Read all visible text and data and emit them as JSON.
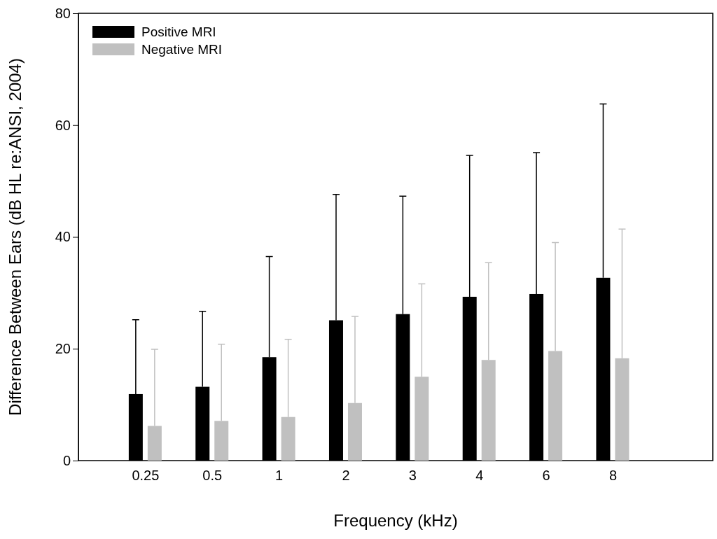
{
  "chart_data": {
    "type": "bar",
    "xlabel": "Frequency (kHz)",
    "ylabel": "Difference Between Ears (dB HL re:ANSI, 2004)",
    "categories": [
      "0.25",
      "0.5",
      "1",
      "2",
      "3",
      "4",
      "6",
      "8"
    ],
    "series": [
      {
        "name": "Positive MRI",
        "color": "#000000",
        "values": [
          11.9,
          13.2,
          18.5,
          25.1,
          26.2,
          29.3,
          29.8,
          32.7
        ],
        "errors": [
          [
            11.9,
            25.2
          ],
          [
            13.2,
            26.7
          ],
          [
            18.5,
            36.5
          ],
          [
            25.1,
            47.6
          ],
          [
            26.2,
            47.3
          ],
          [
            29.3,
            54.6
          ],
          [
            29.8,
            55.1
          ],
          [
            32.7,
            63.8
          ]
        ]
      },
      {
        "name": "Negative MRI",
        "color": "#c0c0c0",
        "values": [
          6.2,
          7.1,
          7.8,
          10.3,
          15.0,
          18.0,
          19.6,
          18.3
        ],
        "errors": [
          [
            6.2,
            19.9
          ],
          [
            7.1,
            20.8
          ],
          [
            7.8,
            21.7
          ],
          [
            10.3,
            25.8
          ],
          [
            15.0,
            31.6
          ],
          [
            18.0,
            35.4
          ],
          [
            19.6,
            39.0
          ],
          [
            18.3,
            41.4
          ]
        ]
      }
    ],
    "ylim": [
      0,
      80
    ],
    "yticks": [
      0,
      20,
      40,
      60,
      80
    ],
    "grid": false,
    "legend": "top left"
  }
}
